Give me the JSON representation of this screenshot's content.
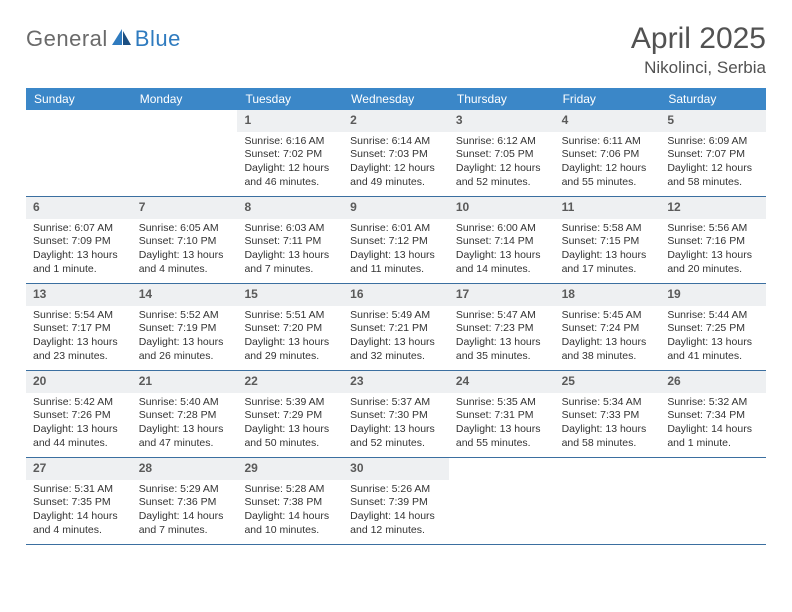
{
  "brand": {
    "part1": "General",
    "part2": "Blue"
  },
  "title": "April 2025",
  "location": "Nikolinci, Serbia",
  "colors": {
    "header_bg": "#3b87c8",
    "header_text": "#ffffff",
    "daynum_bg": "#eef0f2",
    "daynum_text": "#5a5a5a",
    "rule": "#3b6fa0",
    "body_text": "#333333",
    "title_text": "#525252",
    "logo_gray": "#6a6a6a",
    "logo_blue": "#2f7bbf"
  },
  "weekdays": [
    "Sunday",
    "Monday",
    "Tuesday",
    "Wednesday",
    "Thursday",
    "Friday",
    "Saturday"
  ],
  "weeks": [
    [
      {
        "empty": true
      },
      {
        "empty": true
      },
      {
        "n": "1",
        "sunrise": "6:16 AM",
        "sunset": "7:02 PM",
        "daylight": "12 hours and 46 minutes."
      },
      {
        "n": "2",
        "sunrise": "6:14 AM",
        "sunset": "7:03 PM",
        "daylight": "12 hours and 49 minutes."
      },
      {
        "n": "3",
        "sunrise": "6:12 AM",
        "sunset": "7:05 PM",
        "daylight": "12 hours and 52 minutes."
      },
      {
        "n": "4",
        "sunrise": "6:11 AM",
        "sunset": "7:06 PM",
        "daylight": "12 hours and 55 minutes."
      },
      {
        "n": "5",
        "sunrise": "6:09 AM",
        "sunset": "7:07 PM",
        "daylight": "12 hours and 58 minutes."
      }
    ],
    [
      {
        "n": "6",
        "sunrise": "6:07 AM",
        "sunset": "7:09 PM",
        "daylight": "13 hours and 1 minute."
      },
      {
        "n": "7",
        "sunrise": "6:05 AM",
        "sunset": "7:10 PM",
        "daylight": "13 hours and 4 minutes."
      },
      {
        "n": "8",
        "sunrise": "6:03 AM",
        "sunset": "7:11 PM",
        "daylight": "13 hours and 7 minutes."
      },
      {
        "n": "9",
        "sunrise": "6:01 AM",
        "sunset": "7:12 PM",
        "daylight": "13 hours and 11 minutes."
      },
      {
        "n": "10",
        "sunrise": "6:00 AM",
        "sunset": "7:14 PM",
        "daylight": "13 hours and 14 minutes."
      },
      {
        "n": "11",
        "sunrise": "5:58 AM",
        "sunset": "7:15 PM",
        "daylight": "13 hours and 17 minutes."
      },
      {
        "n": "12",
        "sunrise": "5:56 AM",
        "sunset": "7:16 PM",
        "daylight": "13 hours and 20 minutes."
      }
    ],
    [
      {
        "n": "13",
        "sunrise": "5:54 AM",
        "sunset": "7:17 PM",
        "daylight": "13 hours and 23 minutes."
      },
      {
        "n": "14",
        "sunrise": "5:52 AM",
        "sunset": "7:19 PM",
        "daylight": "13 hours and 26 minutes."
      },
      {
        "n": "15",
        "sunrise": "5:51 AM",
        "sunset": "7:20 PM",
        "daylight": "13 hours and 29 minutes."
      },
      {
        "n": "16",
        "sunrise": "5:49 AM",
        "sunset": "7:21 PM",
        "daylight": "13 hours and 32 minutes."
      },
      {
        "n": "17",
        "sunrise": "5:47 AM",
        "sunset": "7:23 PM",
        "daylight": "13 hours and 35 minutes."
      },
      {
        "n": "18",
        "sunrise": "5:45 AM",
        "sunset": "7:24 PM",
        "daylight": "13 hours and 38 minutes."
      },
      {
        "n": "19",
        "sunrise": "5:44 AM",
        "sunset": "7:25 PM",
        "daylight": "13 hours and 41 minutes."
      }
    ],
    [
      {
        "n": "20",
        "sunrise": "5:42 AM",
        "sunset": "7:26 PM",
        "daylight": "13 hours and 44 minutes."
      },
      {
        "n": "21",
        "sunrise": "5:40 AM",
        "sunset": "7:28 PM",
        "daylight": "13 hours and 47 minutes."
      },
      {
        "n": "22",
        "sunrise": "5:39 AM",
        "sunset": "7:29 PM",
        "daylight": "13 hours and 50 minutes."
      },
      {
        "n": "23",
        "sunrise": "5:37 AM",
        "sunset": "7:30 PM",
        "daylight": "13 hours and 52 minutes."
      },
      {
        "n": "24",
        "sunrise": "5:35 AM",
        "sunset": "7:31 PM",
        "daylight": "13 hours and 55 minutes."
      },
      {
        "n": "25",
        "sunrise": "5:34 AM",
        "sunset": "7:33 PM",
        "daylight": "13 hours and 58 minutes."
      },
      {
        "n": "26",
        "sunrise": "5:32 AM",
        "sunset": "7:34 PM",
        "daylight": "14 hours and 1 minute."
      }
    ],
    [
      {
        "n": "27",
        "sunrise": "5:31 AM",
        "sunset": "7:35 PM",
        "daylight": "14 hours and 4 minutes."
      },
      {
        "n": "28",
        "sunrise": "5:29 AM",
        "sunset": "7:36 PM",
        "daylight": "14 hours and 7 minutes."
      },
      {
        "n": "29",
        "sunrise": "5:28 AM",
        "sunset": "7:38 PM",
        "daylight": "14 hours and 10 minutes."
      },
      {
        "n": "30",
        "sunrise": "5:26 AM",
        "sunset": "7:39 PM",
        "daylight": "14 hours and 12 minutes."
      },
      {
        "empty": true
      },
      {
        "empty": true
      },
      {
        "empty": true
      }
    ]
  ],
  "labels": {
    "sunrise": "Sunrise:",
    "sunset": "Sunset:",
    "daylight": "Daylight:"
  }
}
